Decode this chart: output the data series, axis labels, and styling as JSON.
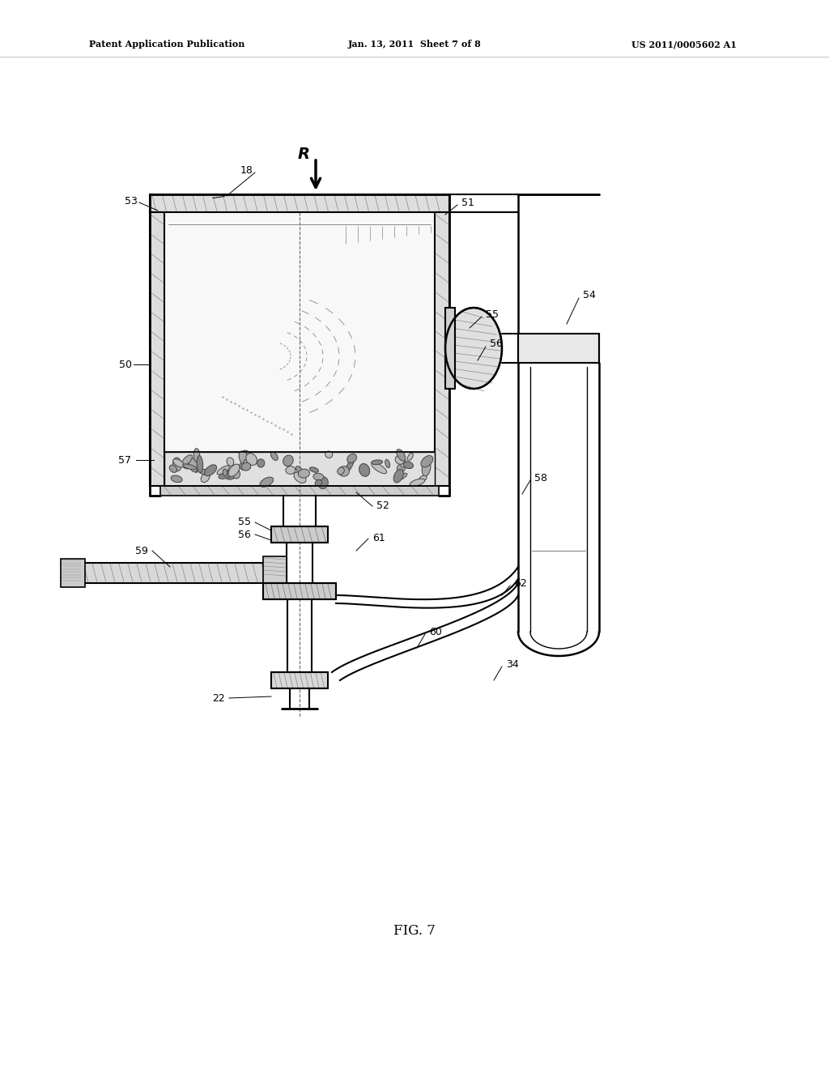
{
  "bg_color": "#ffffff",
  "line_color": "#000000",
  "header_left": "Patent Application Publication",
  "header_mid": "Jan. 13, 2011  Sheet 7 of 8",
  "header_right": "US 2011/0005602 A1",
  "fig_label": "FIG. 7",
  "title_fontsize": 8,
  "fig_fontsize": 12
}
